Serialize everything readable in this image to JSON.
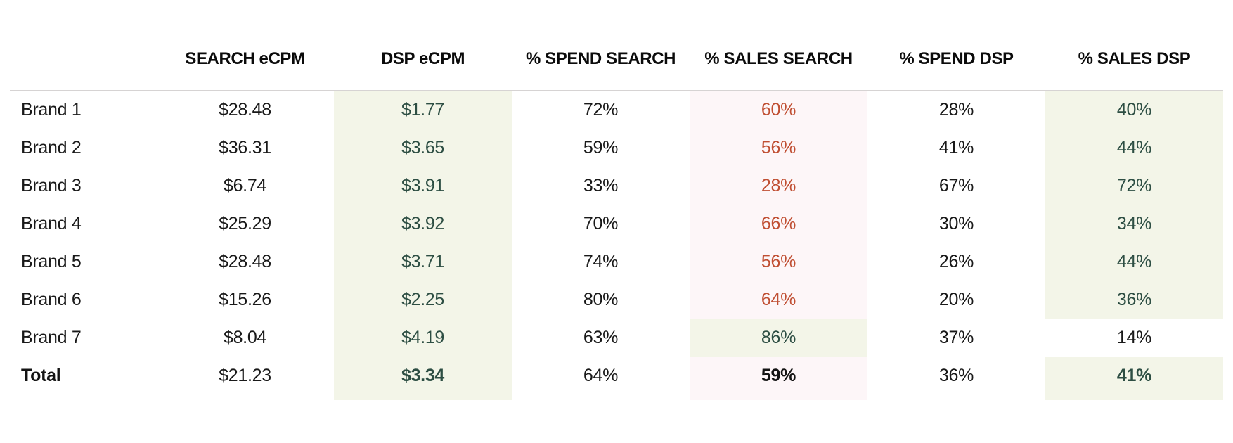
{
  "colors": {
    "page_background": "#ffffff",
    "header_text": "#0b0b0b",
    "body_text": "#191919",
    "positive_text_green": "#2d4e43",
    "negative_text_red": "#c04f33",
    "highlight_band_green": "#f3f5e8",
    "highlight_band_pink": "#fdf6f8",
    "row_divider": "#e1dfdf",
    "header_divider": "#d6d3d3"
  },
  "table": {
    "columns": [
      {
        "key": "brand",
        "label": ""
      },
      {
        "key": "search_ecpm",
        "label": "SEARCH eCPM"
      },
      {
        "key": "dsp_ecpm",
        "label": "DSP eCPM"
      },
      {
        "key": "spend_search",
        "label": "% SPEND SEARCH"
      },
      {
        "key": "sales_search",
        "label": "% SALES SEARCH"
      },
      {
        "key": "spend_dsp",
        "label": "% SPEND DSP"
      },
      {
        "key": "sales_dsp",
        "label": "% SALES DSP"
      }
    ],
    "rows": [
      {
        "brand": "Brand 1",
        "search_ecpm": "$28.48",
        "dsp_ecpm": "$1.77",
        "spend_search": "72%",
        "sales_search": "60%",
        "sales_search_state": "below",
        "spend_dsp": "28%",
        "sales_dsp": "40%",
        "sales_dsp_state": "above"
      },
      {
        "brand": "Brand 2",
        "search_ecpm": "$36.31",
        "dsp_ecpm": "$3.65",
        "spend_search": "59%",
        "sales_search": "56%",
        "sales_search_state": "below",
        "spend_dsp": "41%",
        "sales_dsp": "44%",
        "sales_dsp_state": "above"
      },
      {
        "brand": "Brand 3",
        "search_ecpm": "$6.74",
        "dsp_ecpm": "$3.91",
        "spend_search": "33%",
        "sales_search": "28%",
        "sales_search_state": "below",
        "spend_dsp": "67%",
        "sales_dsp": "72%",
        "sales_dsp_state": "above"
      },
      {
        "brand": "Brand 4",
        "search_ecpm": "$25.29",
        "dsp_ecpm": "$3.92",
        "spend_search": "70%",
        "sales_search": "66%",
        "sales_search_state": "below",
        "spend_dsp": "30%",
        "sales_dsp": "34%",
        "sales_dsp_state": "above"
      },
      {
        "brand": "Brand 5",
        "search_ecpm": "$28.48",
        "dsp_ecpm": "$3.71",
        "spend_search": "74%",
        "sales_search": "56%",
        "sales_search_state": "below",
        "spend_dsp": "26%",
        "sales_dsp": "44%",
        "sales_dsp_state": "above"
      },
      {
        "brand": "Brand 6",
        "search_ecpm": "$15.26",
        "dsp_ecpm": "$2.25",
        "spend_search": "80%",
        "sales_search": "64%",
        "sales_search_state": "below",
        "spend_dsp": "20%",
        "sales_dsp": "36%",
        "sales_dsp_state": "above"
      },
      {
        "brand": "Brand 7",
        "search_ecpm": "$8.04",
        "dsp_ecpm": "$4.19",
        "spend_search": "63%",
        "sales_search": "86%",
        "sales_search_state": "above",
        "spend_dsp": "37%",
        "sales_dsp": "14%",
        "sales_dsp_state": "neutral"
      }
    ],
    "total_row": {
      "brand": "Total",
      "search_ecpm": "$21.23",
      "dsp_ecpm": "$3.34",
      "spend_search": "64%",
      "sales_search": "59%",
      "spend_dsp": "36%",
      "sales_dsp": "41%"
    }
  },
  "chart_data": {
    "type": "table",
    "title": "",
    "columns": [
      "",
      "SEARCH eCPM",
      "DSP eCPM",
      "% SPEND SEARCH",
      "% SALES SEARCH",
      "% SPEND DSP",
      "% SALES DSP"
    ],
    "rows": [
      [
        "Brand 1",
        28.48,
        1.77,
        72,
        60,
        28,
        40
      ],
      [
        "Brand 2",
        36.31,
        3.65,
        59,
        56,
        41,
        44
      ],
      [
        "Brand 3",
        6.74,
        3.91,
        33,
        28,
        67,
        72
      ],
      [
        "Brand 4",
        25.29,
        3.92,
        70,
        66,
        30,
        34
      ],
      [
        "Brand 5",
        28.48,
        3.71,
        74,
        56,
        26,
        44
      ],
      [
        "Brand 6",
        15.26,
        2.25,
        80,
        64,
        20,
        36
      ],
      [
        "Brand 7",
        8.04,
        4.19,
        63,
        86,
        37,
        14
      ],
      [
        "Total",
        21.23,
        3.34,
        64,
        59,
        36,
        41
      ]
    ],
    "units": {
      "SEARCH eCPM": "USD",
      "DSP eCPM": "USD",
      "% SPEND SEARCH": "percent",
      "% SALES SEARCH": "percent",
      "% SPEND DSP": "percent",
      "% SALES DSP": "percent"
    },
    "highlighted_columns": [
      "DSP eCPM",
      "% SALES SEARCH",
      "% SALES DSP"
    ],
    "legend_position": "none",
    "grid": "horizontal-row-dividers"
  }
}
